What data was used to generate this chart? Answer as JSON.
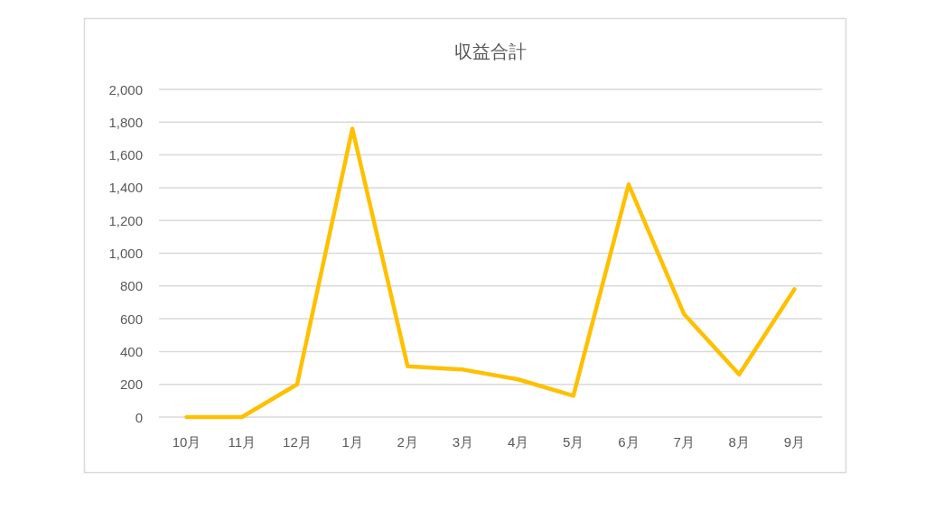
{
  "chart_data": {
    "type": "line",
    "title": "収益合計",
    "categories": [
      "10月",
      "11月",
      "12月",
      "1月",
      "2月",
      "3月",
      "4月",
      "5月",
      "6月",
      "7月",
      "8月",
      "9月"
    ],
    "series": [
      {
        "color": "#ffc000",
        "values": [
          0,
          0,
          200,
          1760,
          310,
          290,
          230,
          130,
          1420,
          630,
          260,
          780
        ]
      }
    ],
    "ylim": [
      0,
      2000
    ],
    "yticks": [
      0,
      200,
      400,
      600,
      800,
      {
        "value": 1000,
        "label": "1,000"
      },
      {
        "value": 1200,
        "label": "1,200"
      },
      {
        "value": 1400,
        "label": "1,400"
      },
      {
        "value": 1600,
        "label": "1,600"
      },
      {
        "value": 1800,
        "label": "1,800"
      },
      {
        "value": 2000,
        "label": "2,000"
      }
    ],
    "grid": "y"
  }
}
